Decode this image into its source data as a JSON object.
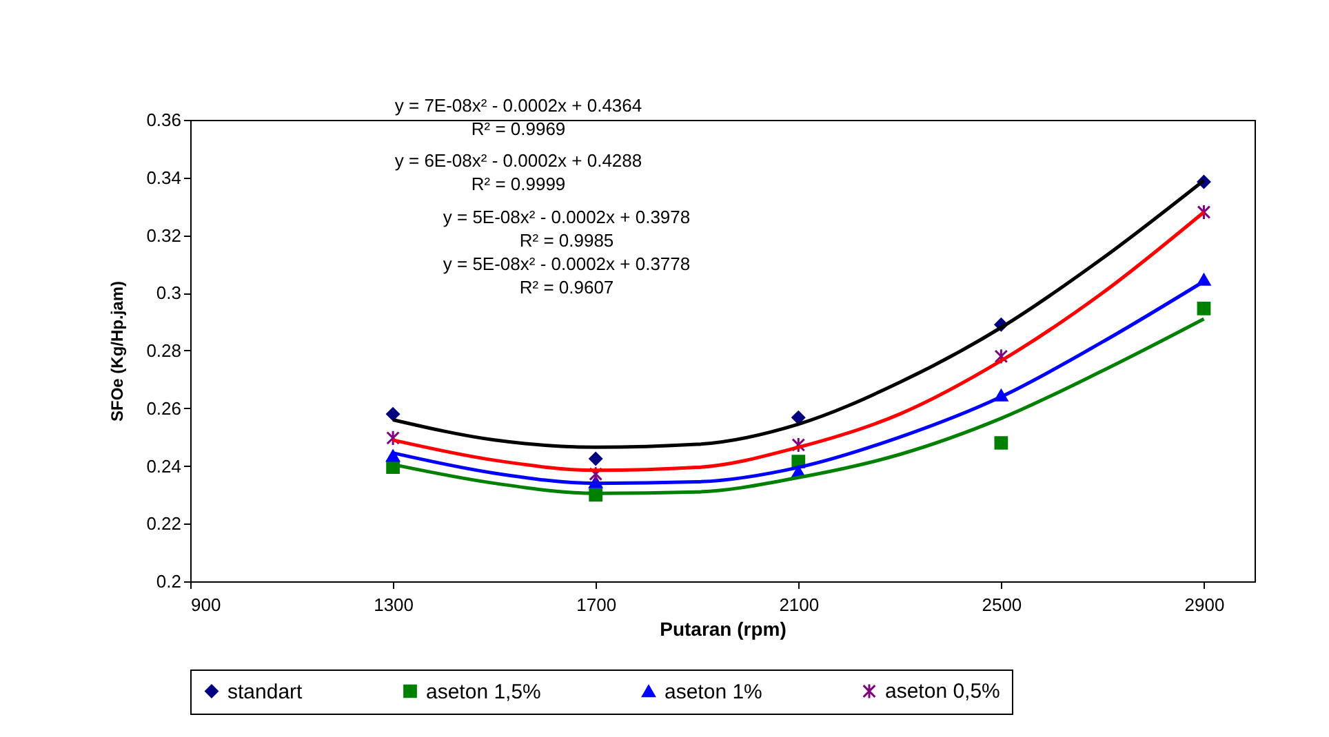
{
  "chart_data": {
    "type": "scatter",
    "xlabel": "Putaran (rpm)",
    "ylabel": "SFOe (Kg/Hp.jam)",
    "xlim": [
      900,
      3000
    ],
    "xticks": [
      900,
      1300,
      1700,
      2100,
      2500,
      2900
    ],
    "ylim": [
      0.2,
      0.36
    ],
    "yticks": [
      0.2,
      0.22,
      0.24,
      0.26,
      0.28,
      0.3,
      0.32,
      0.34,
      0.36
    ],
    "x": [
      1300,
      1700,
      2100,
      2500,
      2900
    ],
    "grid": false,
    "legend": "bottom",
    "series": [
      {
        "name": "standart",
        "type": "scatter",
        "marker": "diamond",
        "color": "#000080",
        "values": [
          0.258,
          0.2425,
          0.2568,
          0.289,
          0.3385
        ]
      },
      {
        "name": "aseton 1,5%",
        "type": "scatter",
        "marker": "square",
        "color": "#008000",
        "values": [
          0.2396,
          0.23,
          0.2415,
          0.248,
          0.2946
        ]
      },
      {
        "name": "aseton 1%",
        "type": "scatter",
        "marker": "triangle",
        "color": "#0000ff",
        "values": [
          0.2435,
          0.2344,
          0.238,
          0.2645,
          0.3046
        ]
      },
      {
        "name": "aseton 0,5%",
        "type": "scatter",
        "marker": "cross",
        "color": "#800080",
        "values": [
          0.2497,
          0.2372,
          0.2473,
          0.278,
          0.328
        ]
      },
      {
        "type": "line",
        "marker": "none",
        "color": "#000000",
        "x": [
          1300,
          1500,
          1700,
          1900,
          2100,
          2300,
          2500,
          2700,
          2900
        ],
        "values": [
          0.256,
          0.249,
          0.2465,
          0.2475,
          0.2545,
          0.269,
          0.288,
          0.312,
          0.339
        ]
      },
      {
        "type": "line",
        "marker": "none",
        "color": "#ff0000",
        "x": [
          1300,
          1500,
          1700,
          1900,
          2100,
          2300,
          2500,
          2700,
          2900
        ],
        "values": [
          0.249,
          0.242,
          0.2385,
          0.2395,
          0.2465,
          0.258,
          0.2765,
          0.3,
          0.328
        ]
      },
      {
        "type": "line",
        "marker": "none",
        "color": "#0000ff",
        "x": [
          1300,
          1500,
          1700,
          1900,
          2100,
          2300,
          2500,
          2700,
          2900
        ],
        "values": [
          0.2445,
          0.2375,
          0.234,
          0.2345,
          0.2395,
          0.25,
          0.264,
          0.283,
          0.304
        ]
      },
      {
        "type": "line",
        "marker": "none",
        "color": "#008000",
        "x": [
          1300,
          1500,
          1700,
          1900,
          2100,
          2300,
          2500,
          2700,
          2900
        ],
        "values": [
          0.2405,
          0.234,
          0.2305,
          0.231,
          0.236,
          0.244,
          0.2565,
          0.273,
          0.291
        ]
      }
    ],
    "annotations": [
      "y = 7E-08x² - 0.0002x + 0.4364",
      "R² = 0.9969",
      "y = 6E-08x² - 0.0002x + 0.4288",
      "R² = 0.9999",
      "y = 5E-08x² - 0.0002x + 0.3978",
      "R² = 0.9985",
      "y = 5E-08x² - 0.0002x + 0.3778",
      "R² = 0.9607"
    ]
  }
}
